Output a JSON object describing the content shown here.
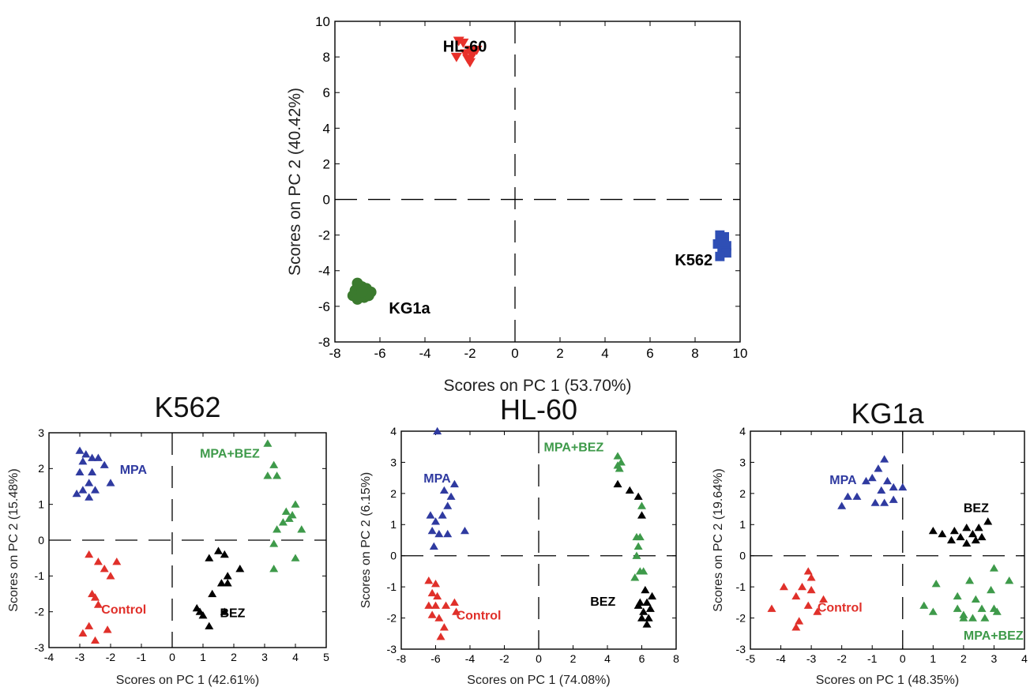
{
  "chart_data": [
    {
      "type": "scatter",
      "title": "",
      "xlabel": "Scores on PC 1 (53.70%)",
      "ylabel": "Scores on PC 2 (40.42%)",
      "xlim": [
        -8,
        10
      ],
      "ylim": [
        -8,
        10
      ],
      "xticks": [
        "-8",
        "-6",
        "-4",
        "-2",
        "0",
        "2",
        "4",
        "6",
        "8",
        "10"
      ],
      "yticks": [
        "-8",
        "-6",
        "-4",
        "-2",
        "0",
        "2",
        "4",
        "6",
        "8",
        "10"
      ],
      "grid": false,
      "series": [
        {
          "name": "HL-60",
          "marker": "triangle-down",
          "color": "#e8302a",
          "points": [
            [
              -2.5,
              8.9
            ],
            [
              -2.3,
              8.8
            ],
            [
              -2.0,
              8.4
            ],
            [
              -1.8,
              8.3
            ],
            [
              -2.2,
              8.2
            ],
            [
              -1.9,
              8.1
            ],
            [
              -2.6,
              8.0
            ],
            [
              -2.1,
              7.9
            ],
            [
              -2.0,
              7.7
            ],
            [
              -1.7,
              8.4
            ]
          ]
        },
        {
          "name": "K562",
          "marker": "square",
          "color": "#2f4fb5",
          "points": [
            [
              9.1,
              -2.0
            ],
            [
              9.3,
              -2.1
            ],
            [
              9.2,
              -2.3
            ],
            [
              9.0,
              -2.5
            ],
            [
              9.4,
              -2.6
            ],
            [
              9.2,
              -2.8
            ],
            [
              9.4,
              -3.0
            ],
            [
              9.1,
              -3.2
            ],
            [
              9.3,
              -2.4
            ]
          ]
        },
        {
          "name": "KG1a",
          "marker": "circle",
          "color": "#3b7a2e",
          "points": [
            [
              -7.0,
              -4.7
            ],
            [
              -6.8,
              -4.9
            ],
            [
              -6.6,
              -5.0
            ],
            [
              -6.4,
              -5.2
            ],
            [
              -7.1,
              -5.1
            ],
            [
              -6.9,
              -5.3
            ],
            [
              -7.2,
              -5.4
            ],
            [
              -6.7,
              -5.5
            ],
            [
              -6.5,
              -5.4
            ],
            [
              -7.0,
              -5.6
            ],
            [
              -6.8,
              -5.2
            ]
          ]
        }
      ],
      "labels": [
        {
          "text": "HL-60",
          "x": -3.2,
          "y": 8.3,
          "color": "#000000"
        },
        {
          "text": "K562",
          "x": 7.1,
          "y": -3.7,
          "color": "#000000"
        },
        {
          "text": "KG1a",
          "x": -5.6,
          "y": -6.4,
          "color": "#000000"
        }
      ]
    },
    {
      "type": "scatter",
      "title": "K562",
      "xlabel": "Scores on PC 1 (42.61%)",
      "ylabel": "Scores on PC 2 (15.48%)",
      "xlim": [
        -4,
        5
      ],
      "ylim": [
        -3,
        3
      ],
      "xticks": [
        "-4",
        "-3",
        "-2",
        "-1",
        "0",
        "1",
        "2",
        "3",
        "4",
        "5"
      ],
      "yticks": [
        "-3",
        "-2",
        "-1",
        "0",
        "1",
        "2",
        "3"
      ],
      "grid": false,
      "series": [
        {
          "name": "MPA",
          "marker": "triangle-up",
          "color": "#2f3aa0",
          "points": [
            [
              -3.0,
              2.5
            ],
            [
              -2.8,
              2.4
            ],
            [
              -2.6,
              2.3
            ],
            [
              -2.4,
              2.3
            ],
            [
              -2.9,
              2.2
            ],
            [
              -2.2,
              2.1
            ],
            [
              -3.0,
              1.9
            ],
            [
              -2.6,
              1.9
            ],
            [
              -2.0,
              1.6
            ],
            [
              -2.7,
              1.6
            ],
            [
              -2.9,
              1.4
            ],
            [
              -2.5,
              1.4
            ],
            [
              -3.1,
              1.3
            ],
            [
              -2.7,
              1.2
            ]
          ]
        },
        {
          "name": "MPA+BEZ",
          "marker": "triangle-up",
          "color": "#3e9a4a",
          "points": [
            [
              3.1,
              2.7
            ],
            [
              3.3,
              2.1
            ],
            [
              3.1,
              1.8
            ],
            [
              3.4,
              1.8
            ],
            [
              3.7,
              0.8
            ],
            [
              4.0,
              1.0
            ],
            [
              3.9,
              0.7
            ],
            [
              3.8,
              0.6
            ],
            [
              3.4,
              0.3
            ],
            [
              3.6,
              0.5
            ],
            [
              4.2,
              0.3
            ],
            [
              3.3,
              -0.1
            ],
            [
              3.3,
              -0.8
            ],
            [
              4.0,
              -0.5
            ]
          ]
        },
        {
          "name": "Control",
          "marker": "triangle-up",
          "color": "#e0302a",
          "points": [
            [
              -2.7,
              -0.4
            ],
            [
              -2.4,
              -0.6
            ],
            [
              -1.8,
              -0.6
            ],
            [
              -2.2,
              -0.8
            ],
            [
              -2.0,
              -1.0
            ],
            [
              -2.6,
              -1.5
            ],
            [
              -2.5,
              -1.6
            ],
            [
              -2.4,
              -1.8
            ],
            [
              -2.7,
              -2.4
            ],
            [
              -2.1,
              -2.5
            ],
            [
              -2.9,
              -2.6
            ],
            [
              -2.5,
              -2.8
            ]
          ]
        },
        {
          "name": "BEZ",
          "marker": "triangle-up",
          "color": "#000000",
          "points": [
            [
              1.5,
              -0.3
            ],
            [
              1.7,
              -0.4
            ],
            [
              1.2,
              -0.5
            ],
            [
              2.2,
              -0.8
            ],
            [
              1.8,
              -1.0
            ],
            [
              1.6,
              -1.2
            ],
            [
              1.8,
              -1.2
            ],
            [
              1.3,
              -1.5
            ],
            [
              0.8,
              -1.9
            ],
            [
              1.0,
              -2.1
            ],
            [
              1.7,
              -2.0
            ],
            [
              0.9,
              -2.0
            ],
            [
              1.2,
              -2.4
            ]
          ]
        }
      ],
      "labels": [
        {
          "text": "MPA",
          "x": -1.7,
          "y": 1.85,
          "color": "#2f3aa0"
        },
        {
          "text": "MPA+BEZ",
          "x": 0.9,
          "y": 2.3,
          "color": "#3e9a4a"
        },
        {
          "text": "Control",
          "x": -2.3,
          "y": -2.05,
          "color": "#e0302a"
        },
        {
          "text": "BEZ",
          "x": 1.55,
          "y": -2.15,
          "color": "#000000"
        }
      ]
    },
    {
      "type": "scatter",
      "title": "HL-60",
      "xlabel": "Scores on PC 1 (74.08%)",
      "ylabel": "Scores on PC 2 (6.15%)",
      "xlim": [
        -8,
        8
      ],
      "ylim": [
        -3,
        4
      ],
      "xticks": [
        "-8",
        "-6",
        "-4",
        "-2",
        "0",
        "2",
        "4",
        "6",
        "8"
      ],
      "yticks": [
        "-3",
        "-2",
        "-1",
        "0",
        "1",
        "2",
        "3",
        "4"
      ],
      "grid": false,
      "series": [
        {
          "name": "MPA",
          "marker": "triangle-up",
          "color": "#2f3aa0",
          "points": [
            [
              -5.9,
              4.0
            ],
            [
              -4.9,
              2.3
            ],
            [
              -5.5,
              2.1
            ],
            [
              -5.1,
              1.9
            ],
            [
              -5.3,
              1.6
            ],
            [
              -6.3,
              1.3
            ],
            [
              -5.6,
              1.3
            ],
            [
              -6.0,
              1.1
            ],
            [
              -6.2,
              0.8
            ],
            [
              -5.8,
              0.7
            ],
            [
              -5.3,
              0.7
            ],
            [
              -4.3,
              0.8
            ],
            [
              -6.1,
              0.3
            ]
          ]
        },
        {
          "name": "MPA+BEZ",
          "marker": "triangle-up",
          "color": "#3e9a4a",
          "points": [
            [
              4.6,
              3.2
            ],
            [
              4.8,
              3.0
            ],
            [
              4.6,
              2.9
            ],
            [
              4.7,
              2.8
            ],
            [
              6.0,
              1.6
            ],
            [
              5.7,
              0.6
            ],
            [
              5.9,
              0.6
            ],
            [
              5.8,
              0.3
            ],
            [
              5.7,
              0.0
            ],
            [
              5.9,
              -0.5
            ],
            [
              6.1,
              -0.5
            ],
            [
              5.6,
              -0.7
            ]
          ]
        },
        {
          "name": "Control",
          "marker": "triangle-up",
          "color": "#e0302a",
          "points": [
            [
              -6.4,
              -0.8
            ],
            [
              -6.0,
              -0.9
            ],
            [
              -6.2,
              -1.2
            ],
            [
              -5.9,
              -1.3
            ],
            [
              -4.9,
              -1.5
            ],
            [
              -6.4,
              -1.6
            ],
            [
              -6.0,
              -1.6
            ],
            [
              -5.4,
              -1.6
            ],
            [
              -4.8,
              -1.8
            ],
            [
              -6.2,
              -1.9
            ],
            [
              -5.8,
              -2.0
            ],
            [
              -5.5,
              -2.3
            ],
            [
              -5.7,
              -2.6
            ]
          ]
        },
        {
          "name": "BEZ",
          "marker": "triangle-up",
          "color": "#000000",
          "points": [
            [
              4.6,
              2.3
            ],
            [
              5.3,
              2.1
            ],
            [
              5.8,
              1.9
            ],
            [
              6.0,
              1.3
            ],
            [
              6.2,
              -1.1
            ],
            [
              6.6,
              -1.3
            ],
            [
              5.9,
              -1.5
            ],
            [
              6.3,
              -1.5
            ],
            [
              5.8,
              -1.6
            ],
            [
              6.5,
              -1.7
            ],
            [
              6.1,
              -1.8
            ],
            [
              6.4,
              -2.0
            ],
            [
              6.3,
              -2.2
            ],
            [
              6.0,
              -2.0
            ]
          ]
        }
      ],
      "labels": [
        {
          "text": "MPA",
          "x": -6.7,
          "y": 2.35,
          "color": "#2f3aa0"
        },
        {
          "text": "MPA+BEZ",
          "x": 0.3,
          "y": 3.35,
          "color": "#3e9a4a"
        },
        {
          "text": "Control",
          "x": -4.8,
          "y": -2.05,
          "color": "#e0302a"
        },
        {
          "text": "BEZ",
          "x": 3.0,
          "y": -1.6,
          "color": "#000000"
        }
      ]
    },
    {
      "type": "scatter",
      "title": "KG1a",
      "xlabel": "Scores on PC 1 (48.35%)",
      "ylabel": "Scores on PC 2 (19.64%)",
      "xlim": [
        -5,
        4
      ],
      "ylim": [
        -3,
        4
      ],
      "xticks": [
        "-5",
        "-4",
        "-3",
        "-2",
        "-1",
        "0",
        "1",
        "2",
        "3",
        "4"
      ],
      "yticks": [
        "-3",
        "-2",
        "-1",
        "0",
        "1",
        "2",
        "3",
        "4"
      ],
      "grid": false,
      "series": [
        {
          "name": "MPA",
          "marker": "triangle-up",
          "color": "#2f3aa0",
          "points": [
            [
              -0.6,
              3.1
            ],
            [
              -0.8,
              2.8
            ],
            [
              -1.0,
              2.5
            ],
            [
              -0.5,
              2.4
            ],
            [
              -1.2,
              2.4
            ],
            [
              -0.3,
              2.2
            ],
            [
              0.0,
              2.2
            ],
            [
              -0.7,
              2.1
            ],
            [
              -1.5,
              1.9
            ],
            [
              -1.8,
              1.9
            ],
            [
              -0.3,
              1.8
            ],
            [
              -0.6,
              1.7
            ],
            [
              -0.9,
              1.7
            ],
            [
              -2.0,
              1.6
            ]
          ]
        },
        {
          "name": "BEZ",
          "marker": "triangle-up",
          "color": "#000000",
          "points": [
            [
              2.8,
              1.1
            ],
            [
              2.5,
              0.9
            ],
            [
              2.1,
              0.9
            ],
            [
              1.7,
              0.8
            ],
            [
              1.0,
              0.8
            ],
            [
              1.3,
              0.7
            ],
            [
              2.3,
              0.7
            ],
            [
              2.6,
              0.6
            ],
            [
              1.9,
              0.6
            ],
            [
              2.4,
              0.5
            ],
            [
              1.6,
              0.5
            ],
            [
              2.1,
              0.4
            ]
          ]
        },
        {
          "name": "Control",
          "marker": "triangle-up",
          "color": "#e0302a",
          "points": [
            [
              -3.1,
              -0.5
            ],
            [
              -3.0,
              -0.7
            ],
            [
              -3.9,
              -1.0
            ],
            [
              -3.3,
              -1.0
            ],
            [
              -3.0,
              -1.1
            ],
            [
              -3.5,
              -1.3
            ],
            [
              -2.6,
              -1.4
            ],
            [
              -3.1,
              -1.6
            ],
            [
              -4.3,
              -1.7
            ],
            [
              -2.8,
              -1.8
            ],
            [
              -3.4,
              -2.1
            ],
            [
              -3.5,
              -2.3
            ]
          ]
        },
        {
          "name": "MPA+BEZ",
          "marker": "triangle-up",
          "color": "#3e9a4a",
          "points": [
            [
              3.0,
              -0.4
            ],
            [
              3.5,
              -0.8
            ],
            [
              2.2,
              -0.8
            ],
            [
              1.1,
              -0.9
            ],
            [
              2.9,
              -1.1
            ],
            [
              1.8,
              -1.3
            ],
            [
              2.4,
              -1.4
            ],
            [
              0.7,
              -1.6
            ],
            [
              1.8,
              -1.7
            ],
            [
              2.6,
              -1.7
            ],
            [
              3.0,
              -1.7
            ],
            [
              1.0,
              -1.8
            ],
            [
              3.1,
              -1.8
            ],
            [
              2.0,
              -1.9
            ],
            [
              2.3,
              -2.0
            ],
            [
              2.7,
              -2.0
            ],
            [
              2.0,
              -2.0
            ]
          ]
        }
      ],
      "labels": [
        {
          "text": "MPA",
          "x": -2.4,
          "y": 2.3,
          "color": "#2f3aa0"
        },
        {
          "text": "BEZ",
          "x": 2.0,
          "y": 1.4,
          "color": "#000000"
        },
        {
          "text": "Control",
          "x": -2.8,
          "y": -1.8,
          "color": "#e0302a"
        },
        {
          "text": "MPA+BEZ",
          "x": 2.0,
          "y": -2.7,
          "color": "#3e9a4a"
        }
      ]
    }
  ]
}
